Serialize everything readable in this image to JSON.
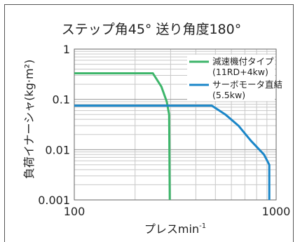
{
  "chart_data": {
    "type": "line",
    "title": "ステップ角45° 送り角度180°",
    "xlabel": "プレスmin",
    "xlabel_sup": "-1",
    "ylabel": "負荷イナーシャ(kg·m²)",
    "xscale": "log",
    "yscale": "log",
    "xlim": [
      100,
      1000
    ],
    "ylim": [
      0.001,
      1
    ],
    "x_ticks": [
      "100",
      "1000"
    ],
    "y_ticks": [
      "1",
      "0.1",
      "0.01",
      "0.001"
    ],
    "grid": true,
    "legend_position": "top-right",
    "series": [
      {
        "name": "減速機付タイプ",
        "name_line2": "(11RD+4kw)",
        "color": "#3db56a",
        "points": [
          [
            100,
            0.33
          ],
          [
            245,
            0.33
          ],
          [
            270,
            0.18
          ],
          [
            287,
            0.09
          ],
          [
            295,
            0.05
          ],
          [
            297,
            0.001
          ]
        ]
      },
      {
        "name": "サーボモータ直結",
        "name_line2": "(5.5kw)",
        "color": "#1a86c8",
        "points": [
          [
            100,
            0.075
          ],
          [
            480,
            0.075
          ],
          [
            560,
            0.05
          ],
          [
            650,
            0.03
          ],
          [
            750,
            0.015
          ],
          [
            870,
            0.008
          ],
          [
            925,
            0.005
          ],
          [
            925,
            0.001
          ]
        ]
      }
    ]
  }
}
